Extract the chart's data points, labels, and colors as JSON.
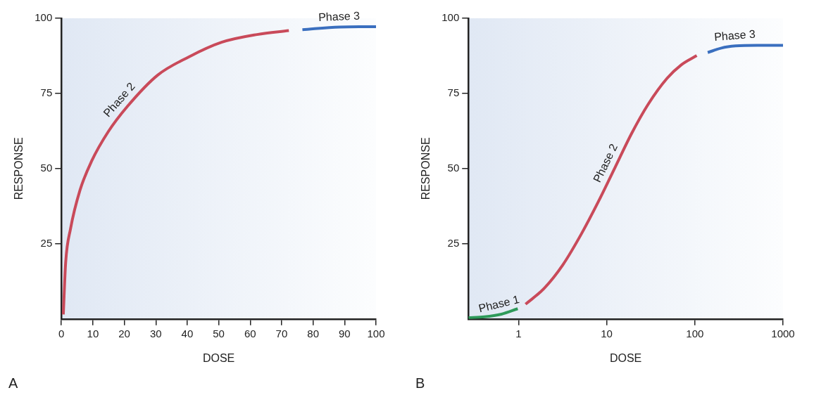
{
  "chart_data": [
    {
      "type": "line",
      "xlabel": "DOSE",
      "ylabel": "RESPONSE",
      "annotations": [
        "A"
      ],
      "xlim": [
        0,
        100
      ],
      "xticks": [
        0,
        10,
        20,
        30,
        40,
        50,
        60,
        70,
        80,
        90,
        100
      ],
      "ylim": [
        0,
        100
      ],
      "yticks": [
        25,
        50,
        75,
        100
      ],
      "grid": false,
      "series": [
        {
          "name": "Phase 2",
          "color": "#c94a5a",
          "x": [
            0.6,
            1.35,
            2.9,
            5.9,
            9.6,
            14.9,
            20.9,
            30.6,
            40.4,
            50.9,
            62.2,
            72.3
          ],
          "values": [
            1.5,
            18.8,
            30,
            42.8,
            52.5,
            62.3,
            70.6,
            81.1,
            87.1,
            92.0,
            94.6,
            95.9
          ]
        },
        {
          "name": "Phase 3",
          "color": "#3a6fbf",
          "x": [
            76.6,
            88.4,
            100
          ],
          "values": [
            96.2,
            97.1,
            97.2
          ]
        }
      ]
    },
    {
      "type": "line",
      "xlabel": "DOSE",
      "ylabel": "RESPONSE",
      "annotations": [
        "B"
      ],
      "log": "x",
      "xlim": [
        0.27,
        1000
      ],
      "xticks": [
        1,
        10,
        100,
        1000
      ],
      "ylim": [
        0,
        100
      ],
      "yticks": [
        25,
        50,
        75,
        100
      ],
      "grid": false,
      "series": [
        {
          "name": "Phase 1",
          "color": "#2e9a5a",
          "x": [
            0.27,
            0.41,
            0.64,
            0.98
          ],
          "values": [
            0.4,
            0.7,
            1.6,
            3.4
          ]
        },
        {
          "name": "Phase 2",
          "color": "#c94a5a",
          "x": [
            1.2,
            1.94,
            3.18,
            5.21,
            8.04,
            12.4,
            19.1,
            29.4,
            48.3,
            70,
            105
          ],
          "values": [
            4.9,
            10.1,
            18.0,
            28.5,
            39.0,
            50.3,
            61.6,
            71.3,
            80.0,
            84.5,
            87.6
          ]
        },
        {
          "name": "Phase 3",
          "color": "#3a6fbf",
          "x": [
            140,
            200,
            290,
            507,
            1000
          ],
          "values": [
            88.6,
            90.1,
            90.8,
            91.0,
            91.0
          ]
        }
      ]
    }
  ]
}
